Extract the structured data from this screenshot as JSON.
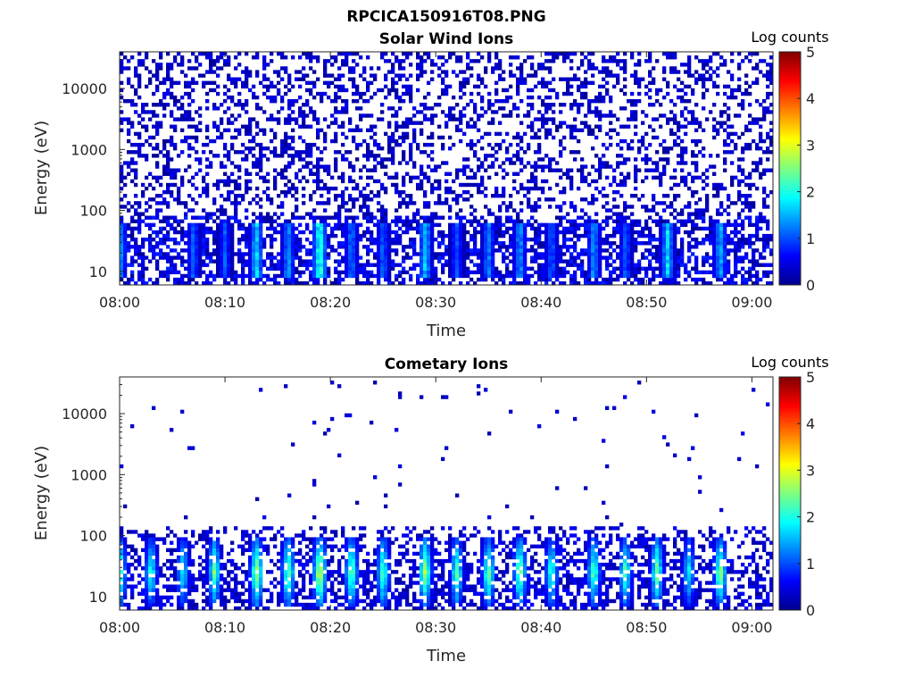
{
  "figure_title": "RPCICA150916T08.PNG",
  "chart_data": [
    {
      "type": "heatmap",
      "title": "Solar Wind Ions",
      "xlabel": "Time",
      "ylabel": "Energy (eV)",
      "x_ticks": [
        "08:00",
        "08:10",
        "08:20",
        "08:30",
        "08:40",
        "08:50",
        "09:00"
      ],
      "xlim": [
        "08:00",
        "09:02"
      ],
      "y_ticks": [
        "10",
        "100",
        "1000",
        "10000"
      ],
      "y_tick_values": [
        10,
        100,
        1000,
        10000
      ],
      "yscale": "log",
      "ylim": [
        6,
        40000
      ],
      "colorbar": {
        "label": "Log counts",
        "range": [
          0,
          5
        ],
        "ticks": [
          "0",
          "1",
          "2",
          "3",
          "4",
          "5"
        ],
        "colormap": "jet"
      },
      "bursts": [
        {
          "time": "08:00",
          "level": 1.8
        },
        {
          "time": "08:07",
          "level": 1.3
        },
        {
          "time": "08:10",
          "level": 1.2
        },
        {
          "time": "08:13",
          "level": 2.0
        },
        {
          "time": "08:16",
          "level": 1.6
        },
        {
          "time": "08:19",
          "level": 2.6
        },
        {
          "time": "08:22",
          "level": 1.4
        },
        {
          "time": "08:25",
          "level": 1.3
        },
        {
          "time": "08:29",
          "level": 1.9
        },
        {
          "time": "08:32",
          "level": 1.2
        },
        {
          "time": "08:35",
          "level": 1.5
        },
        {
          "time": "08:38",
          "level": 1.6
        },
        {
          "time": "08:41",
          "level": 1.3
        },
        {
          "time": "08:45",
          "level": 1.6
        },
        {
          "time": "08:48",
          "level": 1.3
        },
        {
          "time": "08:52",
          "level": 2.0
        },
        {
          "time": "08:57",
          "level": 1.8
        }
      ]
    },
    {
      "type": "heatmap",
      "title": "Cometary Ions",
      "xlabel": "Time",
      "ylabel": "Energy (eV)",
      "x_ticks": [
        "08:00",
        "08:10",
        "08:20",
        "08:30",
        "08:40",
        "08:50",
        "09:00"
      ],
      "xlim": [
        "08:00",
        "09:02"
      ],
      "y_ticks": [
        "10",
        "100",
        "1000",
        "10000"
      ],
      "y_tick_values": [
        10,
        100,
        1000,
        10000
      ],
      "yscale": "log",
      "ylim": [
        6,
        40000
      ],
      "colorbar": {
        "label": "Log counts",
        "range": [
          0,
          5
        ],
        "ticks": [
          "0",
          "1",
          "2",
          "3",
          "4",
          "5"
        ],
        "colormap": "jet"
      },
      "bursts": [
        {
          "time": "08:00",
          "level": 3.0
        },
        {
          "time": "08:03",
          "level": 2.4
        },
        {
          "time": "08:06",
          "level": 2.3
        },
        {
          "time": "08:09",
          "level": 2.8
        },
        {
          "time": "08:13",
          "level": 3.2
        },
        {
          "time": "08:16",
          "level": 3.0
        },
        {
          "time": "08:19",
          "level": 3.6
        },
        {
          "time": "08:22",
          "level": 3.0
        },
        {
          "time": "08:25",
          "level": 2.8
        },
        {
          "time": "08:29",
          "level": 3.2
        },
        {
          "time": "08:32",
          "level": 2.7
        },
        {
          "time": "08:35",
          "level": 2.9
        },
        {
          "time": "08:38",
          "level": 3.1
        },
        {
          "time": "08:41",
          "level": 2.6
        },
        {
          "time": "08:45",
          "level": 2.8
        },
        {
          "time": "08:48",
          "level": 2.7
        },
        {
          "time": "08:51",
          "level": 2.9
        },
        {
          "time": "08:54",
          "level": 2.2
        },
        {
          "time": "08:57",
          "level": 3.1
        }
      ]
    }
  ]
}
